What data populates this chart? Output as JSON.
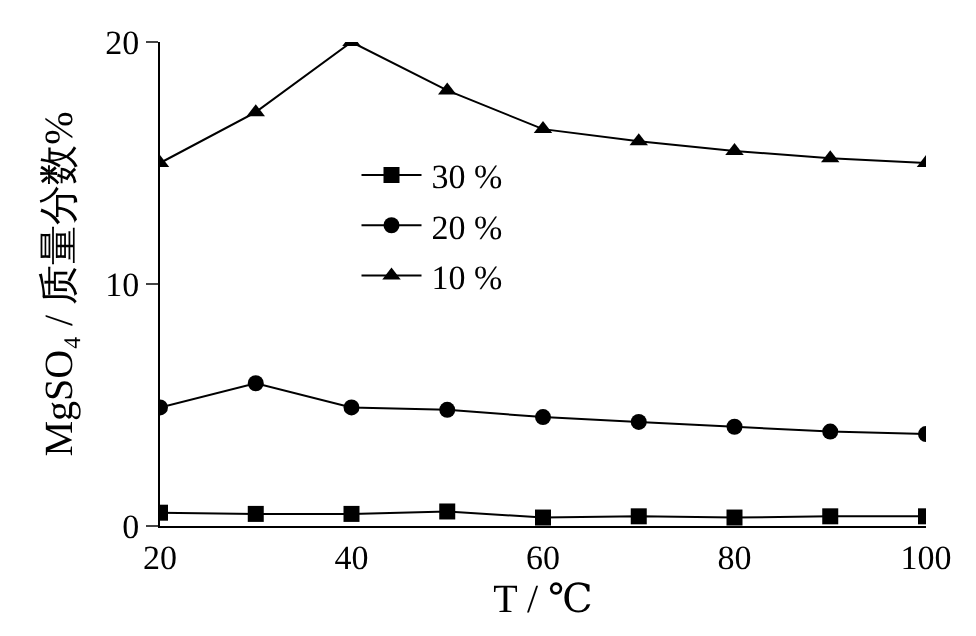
{
  "chart_data": {
    "type": "line",
    "xlabel": "T / ℃",
    "ylabel": "MgSO₄ / 质量分数%",
    "x": [
      20,
      30,
      40,
      50,
      60,
      70,
      80,
      90,
      100
    ],
    "series": [
      {
        "name": "30 %",
        "color": "#000000",
        "marker": "square",
        "values": [
          0.55,
          0.5,
          0.5,
          0.6,
          0.35,
          0.4,
          0.35,
          0.4,
          0.4
        ]
      },
      {
        "name": "20 %",
        "color": "#000000",
        "marker": "circle",
        "values": [
          4.9,
          5.9,
          4.9,
          4.8,
          4.5,
          4.3,
          4.1,
          3.9,
          3.8
        ]
      },
      {
        "name": "10 %",
        "color": "#000000",
        "marker": "triangle",
        "values": [
          15,
          17.1,
          20,
          18,
          16.4,
          15.9,
          15.5,
          15.2,
          15
        ]
      }
    ],
    "xlim": [
      20,
      100
    ],
    "xticks": [
      20,
      40,
      60,
      80,
      100
    ],
    "ylim": [
      0,
      20
    ],
    "yticks": [
      0,
      10,
      20
    ],
    "grid": false,
    "legend": "left"
  }
}
